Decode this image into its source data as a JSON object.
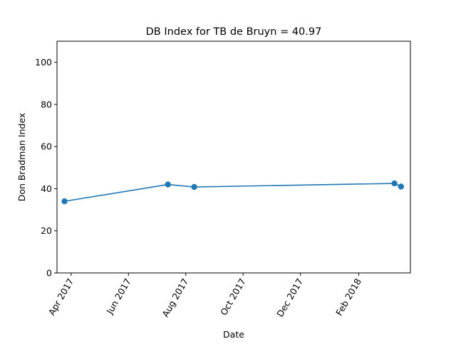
{
  "chart_data": {
    "type": "line",
    "title": "DB Index for TB de Bruyn = 40.97",
    "xlabel": "Date",
    "ylabel": "Don Bradman Index",
    "x": [
      "2017-03-25",
      "2017-07-13",
      "2017-08-10",
      "2018-03-11",
      "2018-03-18"
    ],
    "values": [
      34.0,
      42.0,
      40.8,
      42.5,
      41.0
    ],
    "xlim": [
      "2017-03-17",
      "2018-03-28"
    ],
    "ylim": [
      0,
      110
    ],
    "x_ticks": [
      {
        "date": "2017-04-01",
        "label": "Apr 2017"
      },
      {
        "date": "2017-06-01",
        "label": "Jun 2017"
      },
      {
        "date": "2017-08-01",
        "label": "Aug 2017"
      },
      {
        "date": "2017-10-01",
        "label": "Oct 2017"
      },
      {
        "date": "2017-12-01",
        "label": "Dec 2017"
      },
      {
        "date": "2018-02-01",
        "label": "Feb 2018"
      }
    ],
    "y_ticks": [
      0,
      20,
      40,
      60,
      80,
      100
    ],
    "grid": false,
    "line_color": "#1f77b4"
  }
}
